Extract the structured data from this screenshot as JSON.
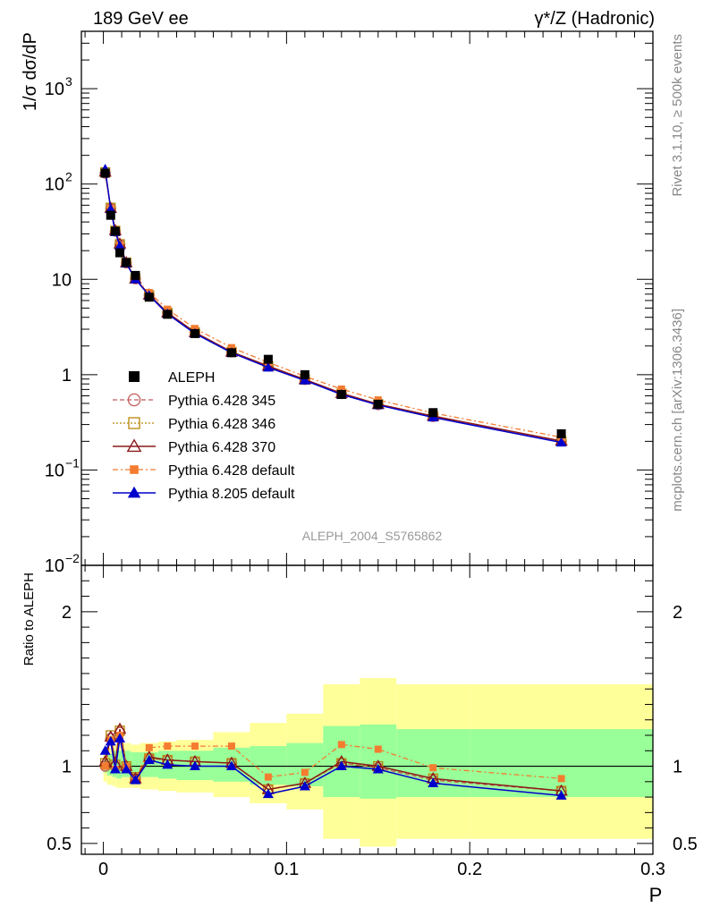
{
  "chart_data": {
    "type": "line",
    "title_left": "189 GeV ee",
    "title_right": "γ*/Z (Hadronic)",
    "ylabel": "1/σ  dσ/dP",
    "xlabel": "P",
    "ratio_ylabel": "Ratio to ALEPH",
    "analysis_label": "ALEPH_2004_S5765862",
    "side_label_top": "Rivet 3.1.10, ≥ 500k events",
    "side_label_bottom": "mcplots.cern.ch [arXiv:1306.3436]",
    "xlim": [
      -0.012,
      0.3
    ],
    "ylim_log": [
      0.01,
      4000
    ],
    "ratio_ylim": [
      0.43,
      2.3
    ],
    "x_ticks": [
      {
        "v": 0,
        "label": "0"
      },
      {
        "v": 0.1,
        "label": "0.1"
      },
      {
        "v": 0.2,
        "label": "0.2"
      },
      {
        "v": 0.3,
        "label": "0.3"
      }
    ],
    "y_ticks": [
      {
        "v": 0.01,
        "base": "10",
        "exp": "−2"
      },
      {
        "v": 0.1,
        "base": "10",
        "exp": "−1"
      },
      {
        "v": 1,
        "base": "1",
        "exp": ""
      },
      {
        "v": 10,
        "base": "10",
        "exp": ""
      },
      {
        "v": 100,
        "base": "10",
        "exp": "2"
      },
      {
        "v": 1000,
        "base": "10",
        "exp": "3"
      }
    ],
    "ratio_ticks": [
      {
        "v": 0.5,
        "label": "0.5"
      },
      {
        "v": 1,
        "label": "1"
      },
      {
        "v": 2,
        "label": "2"
      }
    ],
    "x": [
      0.001,
      0.004,
      0.0065,
      0.009,
      0.0125,
      0.0175,
      0.025,
      0.035,
      0.05,
      0.07,
      0.09,
      0.11,
      0.13,
      0.15,
      0.18,
      0.25
    ],
    "bin_edges": [
      0,
      0.002,
      0.005,
      0.007,
      0.01,
      0.015,
      0.02,
      0.03,
      0.04,
      0.06,
      0.08,
      0.1,
      0.12,
      0.14,
      0.16,
      0.2,
      0.3
    ],
    "data": {
      "name": "ALEPH",
      "values": [
        130,
        47,
        32,
        19,
        15,
        11,
        6.5,
        4.3,
        2.7,
        1.7,
        1.45,
        1.0,
        0.62,
        0.49,
        0.4,
        0.24
      ]
    },
    "band_inner": [
      [
        0.96,
        1.05
      ],
      [
        0.94,
        1.08
      ],
      [
        0.93,
        1.1
      ],
      [
        0.92,
        1.1
      ],
      [
        0.93,
        1.1
      ],
      [
        0.94,
        1.09
      ],
      [
        0.93,
        1.09
      ],
      [
        0.92,
        1.1
      ],
      [
        0.91,
        1.1
      ],
      [
        0.9,
        1.12
      ],
      [
        0.88,
        1.13
      ],
      [
        0.87,
        1.15
      ],
      [
        0.8,
        1.26
      ],
      [
        0.79,
        1.27
      ],
      [
        0.8,
        1.24
      ],
      [
        0.8,
        1.24
      ]
    ],
    "band_outer": [
      [
        0.9,
        1.1
      ],
      [
        0.88,
        1.12
      ],
      [
        0.87,
        1.14
      ],
      [
        0.86,
        1.15
      ],
      [
        0.86,
        1.15
      ],
      [
        0.86,
        1.14
      ],
      [
        0.85,
        1.15
      ],
      [
        0.84,
        1.16
      ],
      [
        0.83,
        1.17
      ],
      [
        0.8,
        1.22
      ],
      [
        0.76,
        1.28
      ],
      [
        0.72,
        1.34
      ],
      [
        0.53,
        1.53
      ],
      [
        0.48,
        1.57
      ],
      [
        0.53,
        1.53
      ],
      [
        0.53,
        1.53
      ]
    ],
    "series": [
      {
        "name": "Pythia 6.428 345",
        "color": "#c25a5a",
        "marker": "circle-open",
        "dash": "5,3",
        "width": 1.3,
        "ratio": [
          1.0,
          1.18,
          1.0,
          1.22,
          0.99,
          0.92,
          1.05,
          1.04,
          1.03,
          1.02,
          0.85,
          0.89,
          1.02,
          0.99,
          0.91,
          0.84
        ]
      },
      {
        "name": "Pythia 6.428 346",
        "color": "#b8860b",
        "marker": "square-open",
        "dash": "2,2",
        "width": 1.3,
        "ratio": [
          1.02,
          1.2,
          1.01,
          1.23,
          1.0,
          0.93,
          1.05,
          1.04,
          1.03,
          1.02,
          0.85,
          0.89,
          1.02,
          1.0,
          0.92,
          0.84
        ]
      },
      {
        "name": "Pythia 6.428 370",
        "color": "#8b1a1a",
        "marker": "triangle-open",
        "dash": "",
        "width": 1.5,
        "ratio": [
          1.03,
          1.19,
          1.02,
          1.24,
          1.0,
          0.92,
          1.06,
          1.04,
          1.03,
          1.02,
          0.85,
          0.89,
          1.03,
          1.0,
          0.92,
          0.84
        ]
      },
      {
        "name": "Pythia 6.428 default",
        "color": "#f47c30",
        "marker": "square-filled",
        "dash": "6,3,2,3",
        "width": 1.3,
        "ratio": [
          1.0,
          1.17,
          0.98,
          1.2,
          1.0,
          0.91,
          1.12,
          1.13,
          1.13,
          1.13,
          0.93,
          0.96,
          1.14,
          1.11,
          0.99,
          0.92
        ]
      },
      {
        "name": "Pythia 8.205 default",
        "color": "#0000cc",
        "marker": "triangle-filled",
        "dash": "",
        "width": 1.5,
        "ratio": [
          1.1,
          1.16,
          0.98,
          1.18,
          0.98,
          0.91,
          1.04,
          1.01,
          1.0,
          1.0,
          0.82,
          0.87,
          1.0,
          0.98,
          0.89,
          0.81
        ]
      }
    ]
  }
}
